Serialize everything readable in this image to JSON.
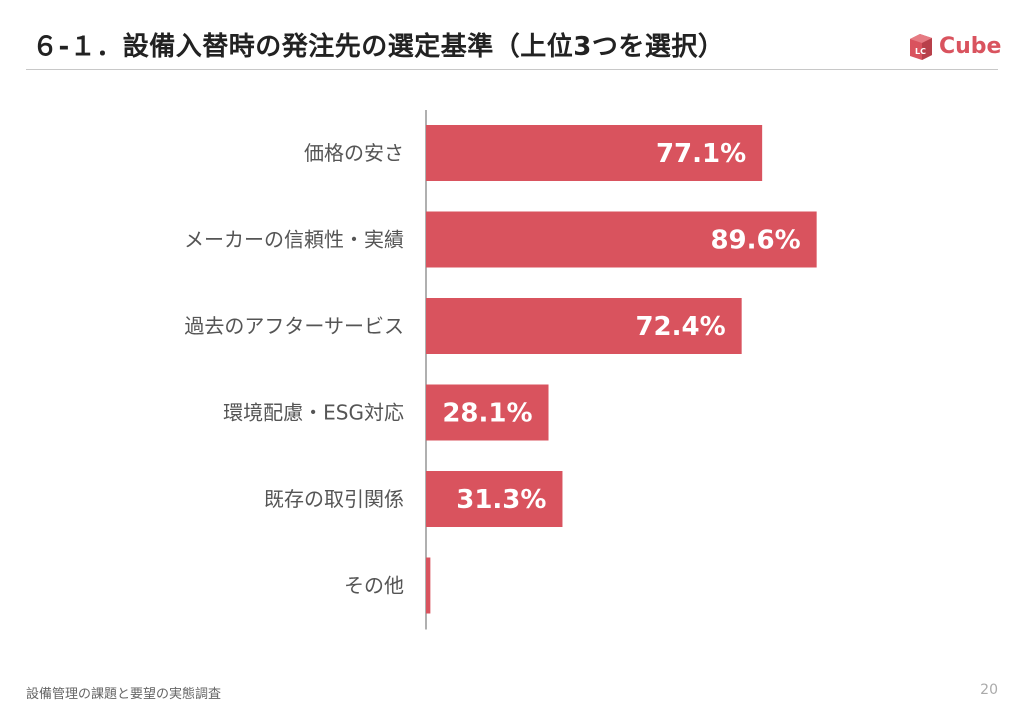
{
  "header": {
    "title": "６-１．設備入替時の発注先の選定基準（上位3つを選択）",
    "logo_badge": "LC",
    "logo_text": "Cube"
  },
  "footer": {
    "report_name": "設備管理の課題と要望の実態調査",
    "page_number": "20"
  },
  "colors": {
    "bar": "#d9535e",
    "axis": "#b0b0b0",
    "label": "#555555",
    "value_text": "#ffffff"
  },
  "chart_data": {
    "type": "bar",
    "orientation": "horizontal",
    "categories": [
      "価格の安さ",
      "メーカーの信頼性・実績",
      "過去のアフターサービス",
      "環境配慮・ESG対応",
      "既存の取引関係",
      "その他"
    ],
    "values": [
      77.1,
      89.6,
      72.4,
      28.1,
      31.3,
      1.0
    ],
    "value_labels": [
      "77.1%",
      "89.6%",
      "72.4%",
      "28.1%",
      "31.3%",
      ""
    ],
    "xlim": [
      0,
      100
    ],
    "grid": false,
    "legend": "none"
  }
}
